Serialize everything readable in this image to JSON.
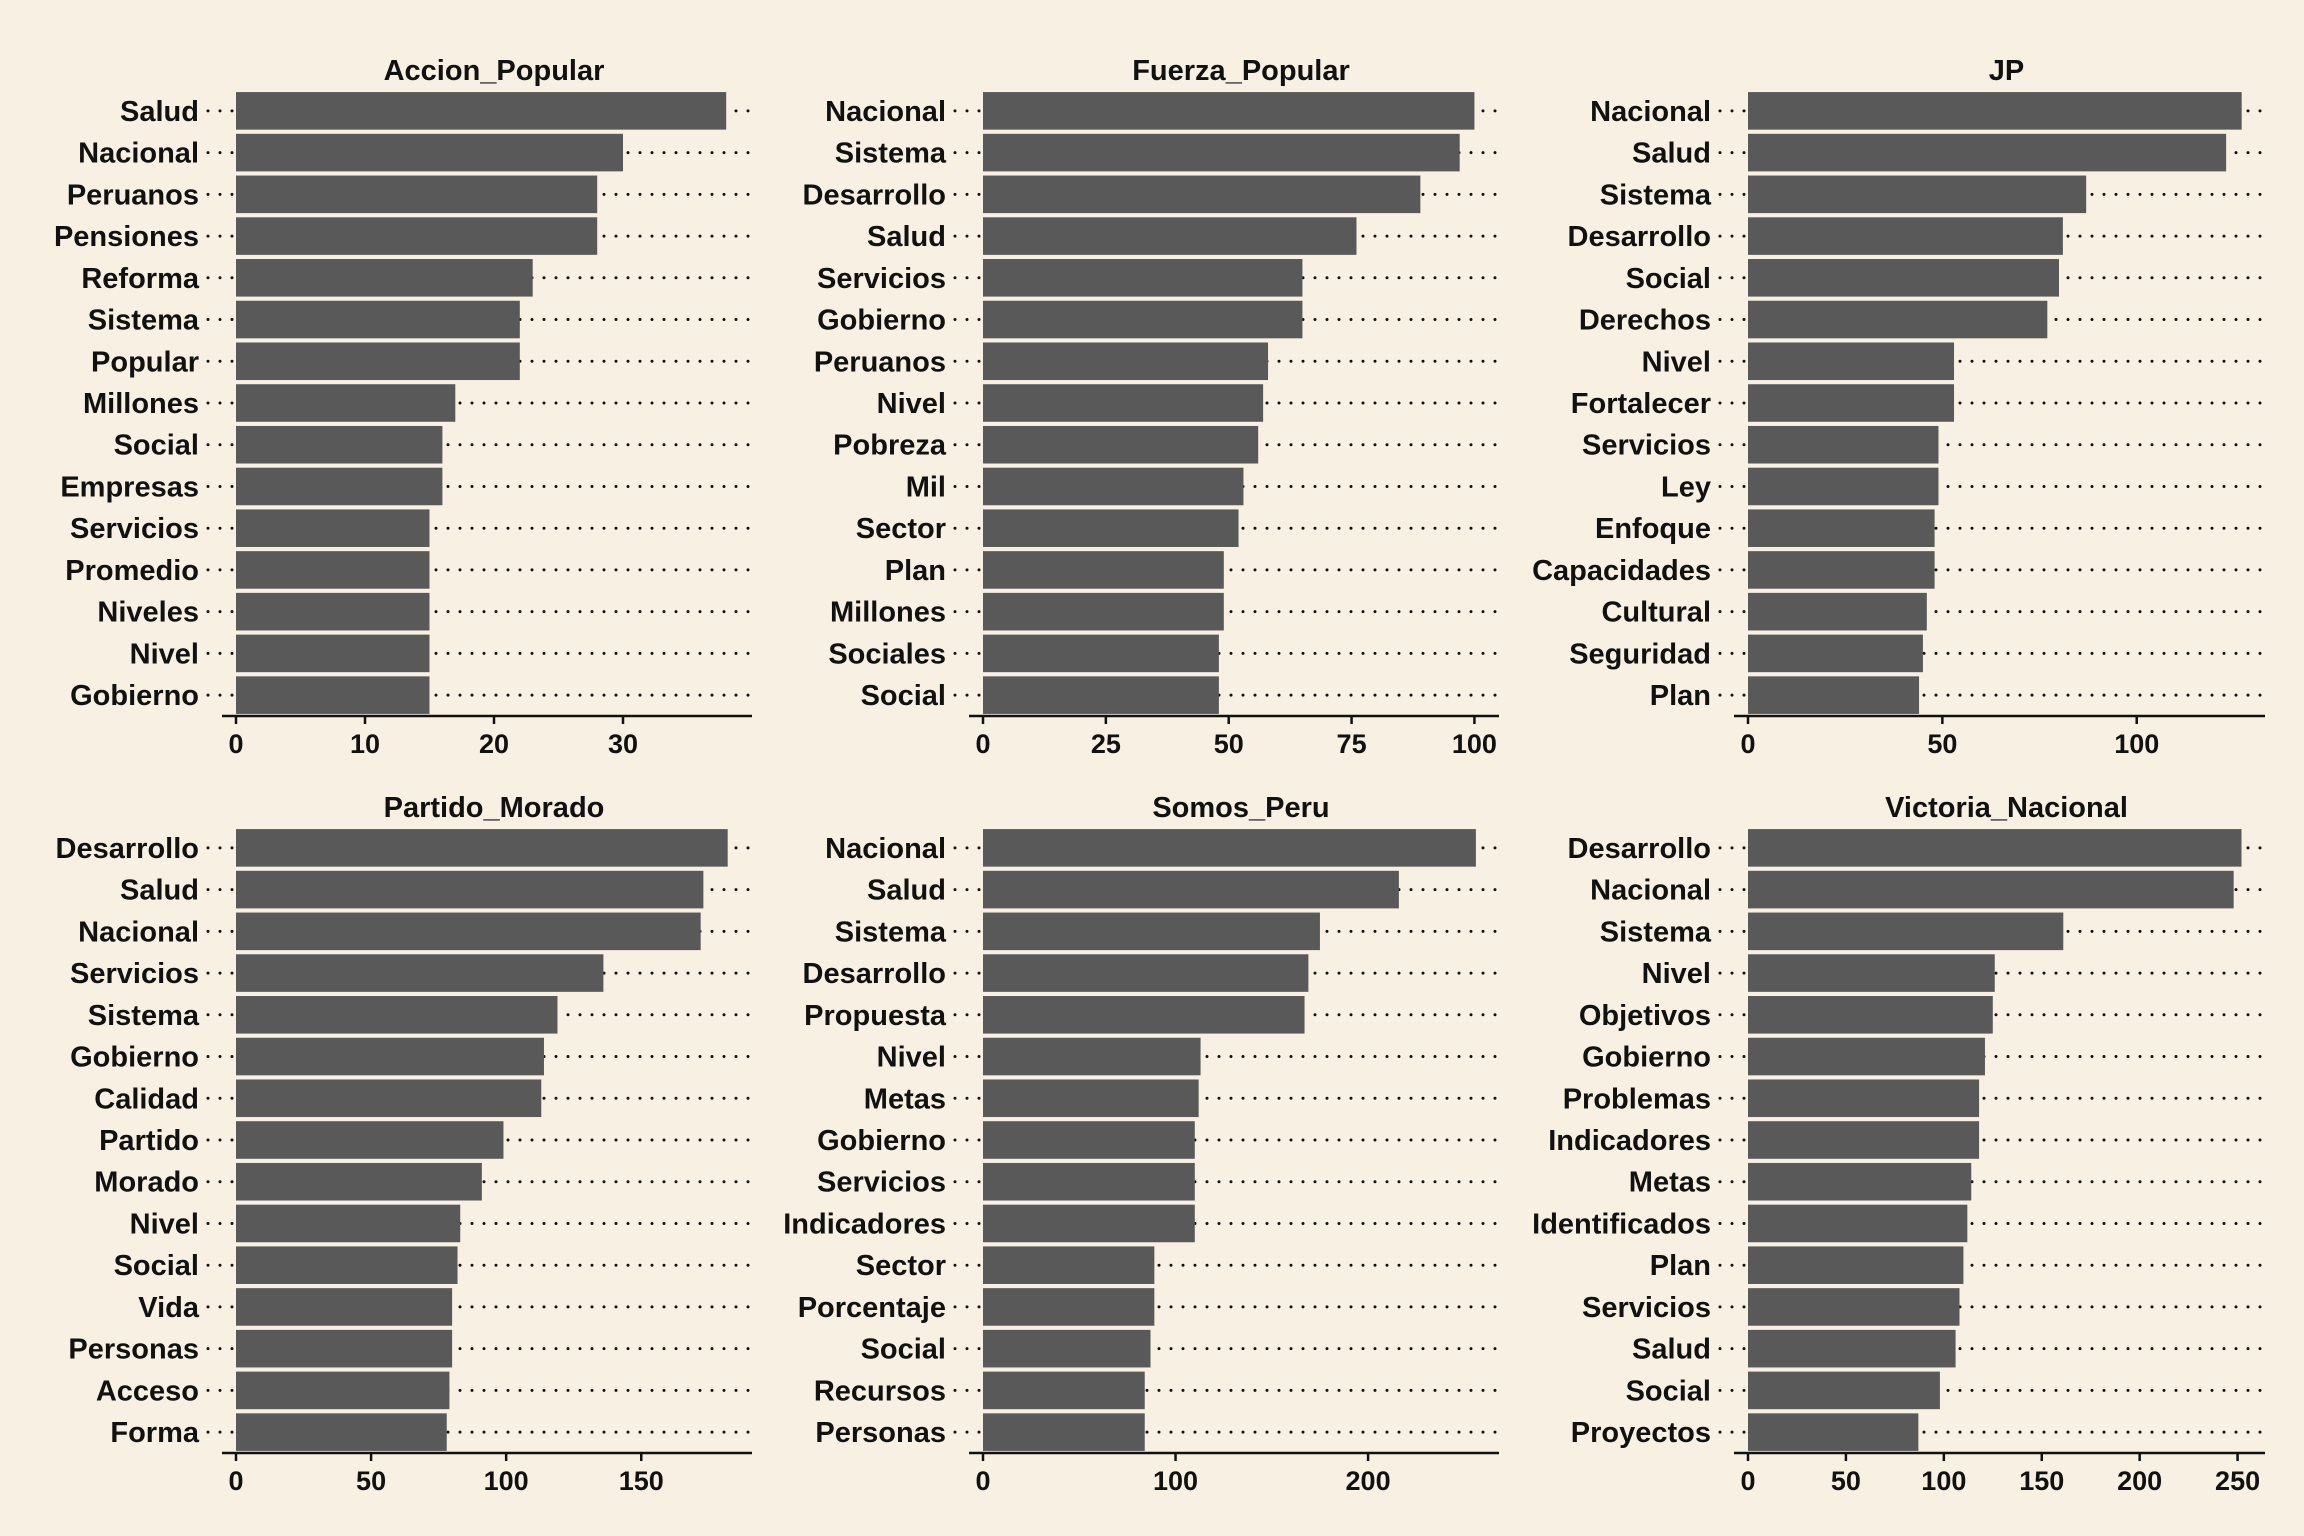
{
  "colors": {
    "background": "#f7f0e3",
    "bar": "#595959",
    "text": "#111111",
    "axis": "#111111",
    "dots": "#111111"
  },
  "chart_data": [
    {
      "type": "bar",
      "orientation": "horizontal",
      "title": "Accion_Popular",
      "categories": [
        "Salud",
        "Nacional",
        "Peruanos",
        "Pensiones",
        "Reforma",
        "Sistema",
        "Popular",
        "Millones",
        "Social",
        "Empresas",
        "Servicios",
        "Promedio",
        "Niveles",
        "Nivel",
        "Gobierno"
      ],
      "values": [
        38,
        30,
        28,
        28,
        23,
        22,
        22,
        17,
        16,
        16,
        15,
        15,
        15,
        15,
        15
      ],
      "xlim": [
        0,
        40
      ],
      "xticks": [
        0,
        10,
        20,
        30
      ]
    },
    {
      "type": "bar",
      "orientation": "horizontal",
      "title": "Fuerza_Popular",
      "categories": [
        "Nacional",
        "Sistema",
        "Desarrollo",
        "Salud",
        "Servicios",
        "Gobierno",
        "Peruanos",
        "Nivel",
        "Pobreza",
        "Mil",
        "Sector",
        "Plan",
        "Millones",
        "Sociales",
        "Social"
      ],
      "values": [
        100,
        97,
        89,
        76,
        65,
        65,
        58,
        57,
        56,
        53,
        52,
        49,
        49,
        48,
        48
      ],
      "xlim": [
        0,
        105
      ],
      "xticks": [
        0,
        25,
        50,
        75,
        100
      ]
    },
    {
      "type": "bar",
      "orientation": "horizontal",
      "title": "JP",
      "categories": [
        "Nacional",
        "Salud",
        "Sistema",
        "Desarrollo",
        "Social",
        "Derechos",
        "Nivel",
        "Fortalecer",
        "Servicios",
        "Ley",
        "Enfoque",
        "Capacidades",
        "Cultural",
        "Seguridad",
        "Plan"
      ],
      "values": [
        127,
        123,
        87,
        81,
        80,
        77,
        53,
        53,
        49,
        49,
        48,
        48,
        46,
        45,
        44
      ],
      "xlim": [
        0,
        133
      ],
      "xticks": [
        0,
        50,
        100
      ]
    },
    {
      "type": "bar",
      "orientation": "horizontal",
      "title": "Partido_Morado",
      "categories": [
        "Desarrollo",
        "Salud",
        "Nacional",
        "Servicios",
        "Sistema",
        "Gobierno",
        "Calidad",
        "Partido",
        "Morado",
        "Nivel",
        "Social",
        "Vida",
        "Personas",
        "Acceso",
        "Forma"
      ],
      "values": [
        182,
        173,
        172,
        136,
        119,
        114,
        113,
        99,
        91,
        83,
        82,
        80,
        80,
        79,
        78
      ],
      "xlim": [
        0,
        191
      ],
      "xticks": [
        0,
        50,
        100,
        150
      ]
    },
    {
      "type": "bar",
      "orientation": "horizontal",
      "title": "Somos_Peru",
      "categories": [
        "Nacional",
        "Salud",
        "Sistema",
        "Desarrollo",
        "Propuesta",
        "Nivel",
        "Metas",
        "Gobierno",
        "Servicios",
        "Indicadores",
        "Sector",
        "Porcentaje",
        "Social",
        "Recursos",
        "Personas"
      ],
      "values": [
        256,
        216,
        175,
        169,
        167,
        113,
        112,
        110,
        110,
        110,
        89,
        89,
        87,
        84,
        84
      ],
      "xlim": [
        0,
        268
      ],
      "xticks": [
        0,
        100,
        200
      ]
    },
    {
      "type": "bar",
      "orientation": "horizontal",
      "title": "Victoria_Nacional",
      "categories": [
        "Desarrollo",
        "Nacional",
        "Sistema",
        "Nivel",
        "Objetivos",
        "Gobierno",
        "Problemas",
        "Indicadores",
        "Metas",
        "Identificados",
        "Plan",
        "Servicios",
        "Salud",
        "Social",
        "Proyectos"
      ],
      "values": [
        252,
        248,
        161,
        126,
        125,
        121,
        118,
        118,
        114,
        112,
        110,
        108,
        106,
        98,
        87
      ],
      "xlim": [
        0,
        264
      ],
      "xticks": [
        0,
        50,
        100,
        150,
        200,
        250
      ]
    }
  ]
}
